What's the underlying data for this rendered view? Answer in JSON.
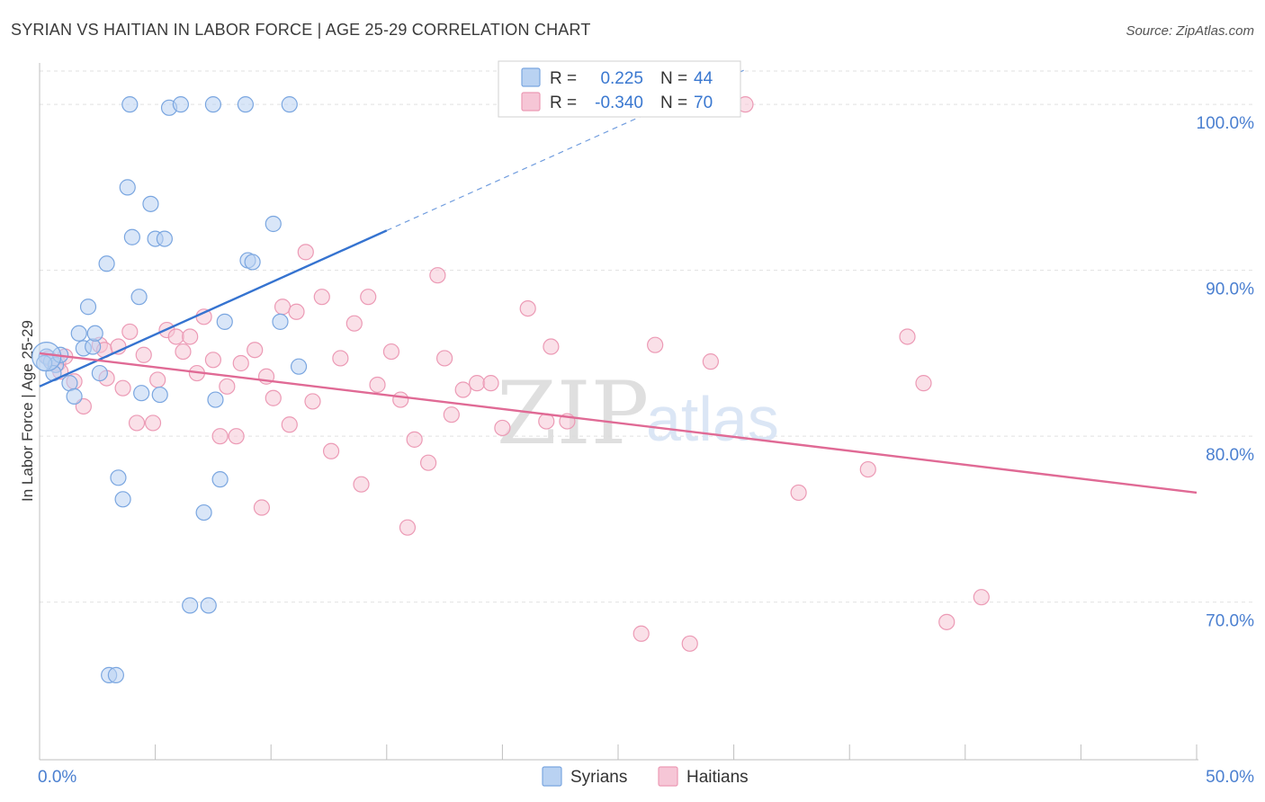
{
  "title": "SYRIAN VS HAITIAN IN LABOR FORCE | AGE 25-29 CORRELATION CHART",
  "source": "Source: ZipAtlas.com",
  "watermark": {
    "zip": "ZIP",
    "atlas": "atlas"
  },
  "legend": {
    "r_label": "R =",
    "n_label": "N =",
    "rows": [
      {
        "name": "Syrians",
        "r": "0.225",
        "n": "44"
      },
      {
        "name": "Haitians",
        "r": "-0.340",
        "n": "70"
      }
    ]
  },
  "bottom_legend": [
    "Syrians",
    "Haitians"
  ],
  "colors": {
    "syrians_fill": "#b9d2f2",
    "syrians_stroke": "#7aa6e0",
    "syrians_line": "#3573d0",
    "haitians_fill": "#f6c6d6",
    "haitians_stroke": "#ec9ab5",
    "haitians_line": "#e06a95",
    "tick_text": "#4a7fd0",
    "grid": "#e1e1e1"
  },
  "chart_data": {
    "type": "scatter",
    "title": "SYRIAN VS HAITIAN IN LABOR FORCE | AGE 25-29 CORRELATION CHART",
    "xlabel": "",
    "ylabel": "In Labor Force | Age 25-29",
    "xlim": [
      0,
      50
    ],
    "ylim": [
      60.5,
      102.5
    ],
    "x_tick_labels": [
      "0.0%",
      "50.0%"
    ],
    "y_ticks": [
      70,
      80,
      90,
      100
    ],
    "y_tick_labels": [
      "70.0%",
      "80.0%",
      "90.0%",
      "100.0%"
    ],
    "grid": true,
    "legend_position": "top-center",
    "series": [
      {
        "name": "Syrians",
        "r": 0.225,
        "n": 44,
        "trend": {
          "x0": 0,
          "y0": 83.0,
          "x1": 15,
          "y1": 92.4,
          "dashed_to_x": 30.5,
          "dashed_to_y": 102.1
        },
        "points": [
          [
            0.3,
            84.8
          ],
          [
            0.5,
            84.5
          ],
          [
            0.7,
            84.3
          ],
          [
            0.6,
            83.8
          ],
          [
            0.9,
            84.9
          ],
          [
            1.3,
            83.2
          ],
          [
            1.7,
            86.2
          ],
          [
            1.5,
            82.4
          ],
          [
            1.9,
            85.3
          ],
          [
            2.1,
            87.8
          ],
          [
            2.3,
            85.4
          ],
          [
            2.4,
            86.2
          ],
          [
            2.6,
            83.8
          ],
          [
            2.9,
            90.4
          ],
          [
            3.0,
            65.6
          ],
          [
            3.3,
            65.6
          ],
          [
            3.4,
            77.5
          ],
          [
            3.6,
            76.2
          ],
          [
            3.8,
            95.0
          ],
          [
            3.9,
            100.0
          ],
          [
            4.0,
            92.0
          ],
          [
            4.3,
            88.4
          ],
          [
            4.4,
            82.6
          ],
          [
            4.8,
            94.0
          ],
          [
            5.0,
            91.9
          ],
          [
            5.2,
            82.5
          ],
          [
            5.4,
            91.9
          ],
          [
            5.6,
            99.8
          ],
          [
            6.1,
            100.0
          ],
          [
            6.5,
            69.8
          ],
          [
            7.1,
            75.4
          ],
          [
            7.3,
            69.8
          ],
          [
            7.5,
            100.0
          ],
          [
            7.6,
            82.2
          ],
          [
            7.8,
            77.4
          ],
          [
            8.0,
            86.9
          ],
          [
            8.9,
            100.0
          ],
          [
            9.0,
            90.6
          ],
          [
            9.2,
            90.5
          ],
          [
            10.1,
            92.8
          ],
          [
            10.4,
            86.9
          ],
          [
            10.8,
            100.0
          ],
          [
            11.2,
            84.2
          ],
          [
            0.2,
            84.4
          ]
        ]
      },
      {
        "name": "Haitians",
        "r": -0.34,
        "n": 70,
        "trend": {
          "x0": 0,
          "y0": 85.0,
          "x1": 50,
          "y1": 76.6
        },
        "points": [
          [
            0.4,
            84.7
          ],
          [
            0.8,
            84.4
          ],
          [
            0.9,
            83.9
          ],
          [
            1.1,
            84.8
          ],
          [
            1.5,
            83.3
          ],
          [
            1.9,
            81.8
          ],
          [
            2.6,
            85.5
          ],
          [
            2.8,
            85.2
          ],
          [
            2.9,
            83.5
          ],
          [
            3.4,
            85.4
          ],
          [
            3.6,
            82.9
          ],
          [
            3.9,
            86.3
          ],
          [
            4.2,
            80.8
          ],
          [
            4.5,
            84.9
          ],
          [
            4.9,
            80.8
          ],
          [
            5.1,
            83.4
          ],
          [
            5.5,
            86.4
          ],
          [
            5.9,
            86.0
          ],
          [
            6.2,
            85.1
          ],
          [
            6.5,
            86.0
          ],
          [
            6.8,
            83.8
          ],
          [
            7.1,
            87.2
          ],
          [
            7.5,
            84.6
          ],
          [
            7.8,
            80.0
          ],
          [
            8.1,
            83.0
          ],
          [
            8.5,
            80.0
          ],
          [
            8.7,
            84.4
          ],
          [
            9.3,
            85.2
          ],
          [
            9.6,
            75.7
          ],
          [
            9.8,
            83.6
          ],
          [
            10.1,
            82.3
          ],
          [
            10.5,
            87.8
          ],
          [
            10.8,
            80.7
          ],
          [
            11.1,
            87.5
          ],
          [
            11.5,
            91.1
          ],
          [
            11.8,
            82.1
          ],
          [
            12.2,
            88.4
          ],
          [
            12.6,
            79.1
          ],
          [
            13.0,
            84.7
          ],
          [
            13.6,
            86.8
          ],
          [
            13.9,
            77.1
          ],
          [
            14.2,
            88.4
          ],
          [
            14.6,
            83.1
          ],
          [
            15.2,
            85.1
          ],
          [
            15.6,
            82.2
          ],
          [
            15.9,
            74.5
          ],
          [
            16.2,
            79.8
          ],
          [
            16.8,
            78.4
          ],
          [
            17.2,
            89.7
          ],
          [
            17.5,
            84.7
          ],
          [
            17.8,
            81.3
          ],
          [
            18.3,
            82.8
          ],
          [
            18.9,
            83.2
          ],
          [
            19.5,
            83.2
          ],
          [
            20.0,
            80.5
          ],
          [
            21.1,
            87.7
          ],
          [
            21.9,
            80.9
          ],
          [
            22.1,
            85.4
          ],
          [
            22.8,
            80.9
          ],
          [
            26.0,
            68.1
          ],
          [
            26.6,
            85.5
          ],
          [
            28.1,
            67.5
          ],
          [
            29.0,
            84.5
          ],
          [
            30.5,
            100.0
          ],
          [
            32.8,
            76.6
          ],
          [
            35.8,
            78.0
          ],
          [
            37.5,
            86.0
          ],
          [
            38.2,
            83.2
          ],
          [
            39.2,
            68.8
          ],
          [
            40.7,
            70.3
          ]
        ]
      }
    ]
  }
}
